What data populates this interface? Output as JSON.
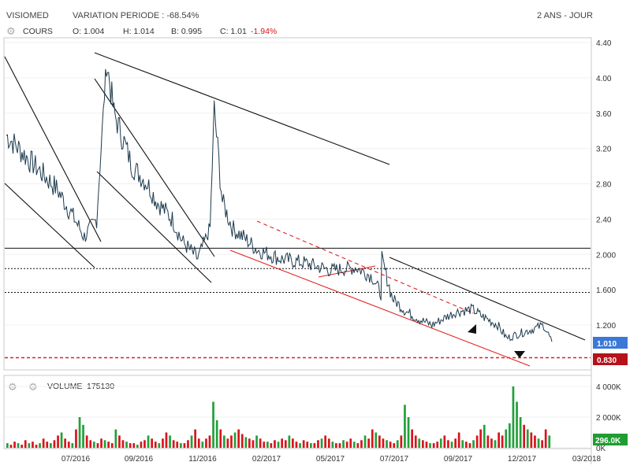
{
  "header": {
    "symbol": "VISIOMED",
    "variation": "VARIATION PERIODE : -68.54%",
    "period": "2 ANS - JOUR"
  },
  "price_legend": {
    "label": "COURS",
    "open": "O: 1.004",
    "high": "H: 1.014",
    "low": "B: 0.995",
    "close": "C: 1.01",
    "change": "-1.94%"
  },
  "volume_legend": {
    "label": "VOLUME",
    "value": "175130"
  },
  "badges": {
    "last_price": "1.010",
    "support": "0.830",
    "last_volume": "296.0K"
  },
  "colors": {
    "price_line": "#1c3a4e",
    "trend_red": "#e02020",
    "badge_blue": "#3b78d8",
    "badge_red": "#b5121b",
    "badge_green": "#1f9d31",
    "vol_red": "#d8141b",
    "vol_green": "#22a03a"
  },
  "chart_data": [
    {
      "type": "line",
      "series": [
        {
          "x": [
            "2016-04",
            "2016-05",
            "2016-06",
            "2016-06-20",
            "2016-07-05",
            "2016-07-20",
            "2016-08",
            "2016-08-10",
            "2016-08-25",
            "2016-09",
            "2016-09-20",
            "2016-10",
            "2016-10-20",
            "2016-11",
            "2016-11-20",
            "2016-12-05",
            "2016-12-10",
            "2016-12-20",
            "2017-01",
            "2017-01-20",
            "2017-02",
            "2017-03",
            "2017-04",
            "2017-05",
            "2017-06",
            "2017-06-20",
            "2017-07",
            "2017-07-02",
            "2017-07-15",
            "2017-08",
            "2017-08-20",
            "2017-09",
            "2017-09-20",
            "2017-10",
            "2017-10-20",
            "2017-11",
            "2017-11-20",
            "2017-12",
            "2017-12-15",
            "2018-01",
            "2018-01-15",
            "2018-01-25"
          ],
          "values": [
            3.35,
            3.05,
            2.75,
            2.45,
            2.2,
            2.4,
            4.2,
            3.6,
            3.2,
            3.0,
            2.8,
            2.6,
            2.4,
            2.15,
            1.95,
            2.3,
            3.65,
            2.6,
            2.3,
            2.15,
            2.05,
            1.95,
            1.9,
            1.82,
            1.85,
            1.75,
            1.55,
            1.95,
            1.5,
            1.35,
            1.25,
            1.2,
            1.3,
            1.35,
            1.38,
            1.3,
            1.2,
            1.05,
            1.1,
            1.15,
            1.2,
            1.01
          ]
        }
      ],
      "yticks": [
        "4.40",
        "4.00",
        "3.60",
        "3.20",
        "2.80",
        "2.40",
        "2.000",
        "1.600",
        "1.200"
      ],
      "xticks": [
        "07/2016",
        "09/2016",
        "11/2016",
        "02/2017",
        "05/2017",
        "07/2017",
        "09/2017",
        "12/2017",
        "03/2018"
      ],
      "ylim": [
        0.8,
        4.5
      ],
      "hlines": [
        2.07,
        1.84,
        1.57,
        0.83
      ]
    },
    {
      "type": "bar",
      "series": [
        {
          "values": [
            3,
            2,
            4,
            3,
            2,
            5,
            3,
            4,
            2,
            3,
            6,
            4,
            3,
            5,
            8,
            10,
            6,
            4,
            3,
            12,
            20,
            15,
            8,
            5,
            4,
            3,
            6,
            5,
            4,
            3,
            12,
            8,
            5,
            4,
            3,
            3,
            2,
            4,
            5,
            8,
            6,
            4,
            3,
            6,
            10,
            8,
            5,
            4,
            3,
            3,
            5,
            8,
            12,
            6,
            4,
            6,
            8,
            30,
            18,
            12,
            8,
            6,
            8,
            10,
            12,
            9,
            7,
            6,
            5,
            8,
            6,
            4,
            4,
            3,
            5,
            4,
            6,
            5,
            8,
            6,
            4,
            3,
            5,
            4,
            3,
            3,
            5,
            6,
            8,
            6,
            4,
            3,
            3,
            5,
            4,
            6,
            4,
            3,
            5,
            8,
            6,
            12,
            10,
            8,
            6,
            5,
            4,
            3,
            5,
            8,
            28,
            20,
            12,
            8,
            6,
            5,
            4,
            3,
            3,
            4,
            6,
            8,
            5,
            4,
            6,
            10,
            5,
            4,
            3,
            5,
            8,
            12,
            15,
            8,
            6,
            5,
            10,
            8,
            12,
            16,
            40,
            30,
            20,
            15,
            12,
            10,
            8,
            6,
            5,
            12,
            8
          ]
        }
      ],
      "yticks": [
        "4 000K",
        "2 000K",
        "0K"
      ],
      "ylim": [
        0,
        4500
      ]
    }
  ]
}
